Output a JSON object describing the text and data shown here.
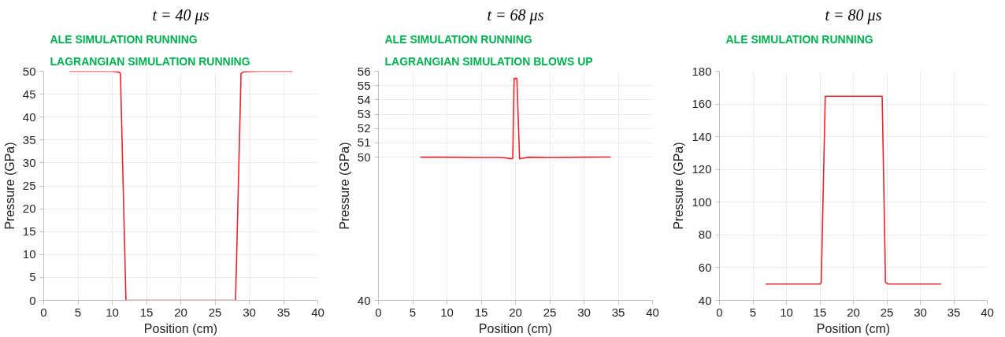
{
  "chart_data": [
    {
      "type": "line",
      "title": "t = 40 μs",
      "xlabel": "Position (cm)",
      "ylabel": "Pressure (GPa)",
      "annotations": [
        "ALE SIMULATION RUNNING",
        "LAGRANGIAN SIMULATION RUNNING"
      ],
      "series": [
        {
          "color": "#e8242b",
          "x": [
            3.7,
            10,
            11,
            11.2,
            12.0,
            28.0,
            28.8,
            29.2,
            31,
            36.3
          ],
          "values": [
            50,
            50,
            49.8,
            49.5,
            0,
            0,
            49.5,
            49.9,
            50,
            50
          ]
        }
      ],
      "xlim": [
        0,
        40
      ],
      "xticks": [
        0,
        5,
        10,
        15,
        20,
        25,
        30,
        35,
        40
      ],
      "ylim": [
        0,
        50
      ],
      "yticks": [
        0,
        5,
        10,
        15,
        20,
        25,
        30,
        35,
        40,
        45,
        50
      ],
      "grid": true
    },
    {
      "type": "line",
      "title": "t = 68 μs",
      "xlabel": "Position (cm)",
      "ylabel": "Pressure (GPa)",
      "annotations": [
        "ALE SIMULATION RUNNING",
        "LAGRANGIAN SIMULATION BLOWS UP"
      ],
      "series": [
        {
          "color": "#e8242b",
          "x": [
            6.1,
            10,
            15,
            17.5,
            18.5,
            19.4,
            19.6,
            19.8,
            20.2,
            20.6,
            21,
            22,
            25,
            30,
            33.9
          ],
          "values": [
            50.0,
            50.0,
            49.98,
            49.98,
            49.95,
            49.89,
            49.92,
            55.5,
            55.5,
            49.89,
            49.92,
            50.0,
            49.98,
            50.0,
            50.01
          ]
        }
      ],
      "xlim": [
        0,
        40
      ],
      "xticks": [
        0,
        5,
        10,
        15,
        20,
        25,
        30,
        35,
        40
      ],
      "ylim": [
        40,
        56
      ],
      "yticks": [
        40,
        50,
        51,
        52,
        53,
        54,
        55,
        56
      ],
      "grid": true
    },
    {
      "type": "line",
      "title": "t = 80 μs",
      "xlabel": "Position (cm)",
      "ylabel": "Pressure (GPa)",
      "annotations": [
        "ALE SIMULATION RUNNING"
      ],
      "series": [
        {
          "color": "#e8242b",
          "x": [
            6.9,
            15.0,
            15.2,
            15.8,
            24.3,
            24.8,
            25.2,
            33.1
          ],
          "values": [
            50,
            50,
            51,
            164.7,
            164.7,
            51,
            50,
            50
          ]
        }
      ],
      "xlim": [
        0,
        40
      ],
      "xticks": [
        0,
        5,
        10,
        15,
        20,
        25,
        30,
        35,
        40
      ],
      "ylim": [
        40,
        180
      ],
      "yticks": [
        40,
        60,
        80,
        100,
        120,
        140,
        160,
        180
      ],
      "grid": true
    }
  ]
}
